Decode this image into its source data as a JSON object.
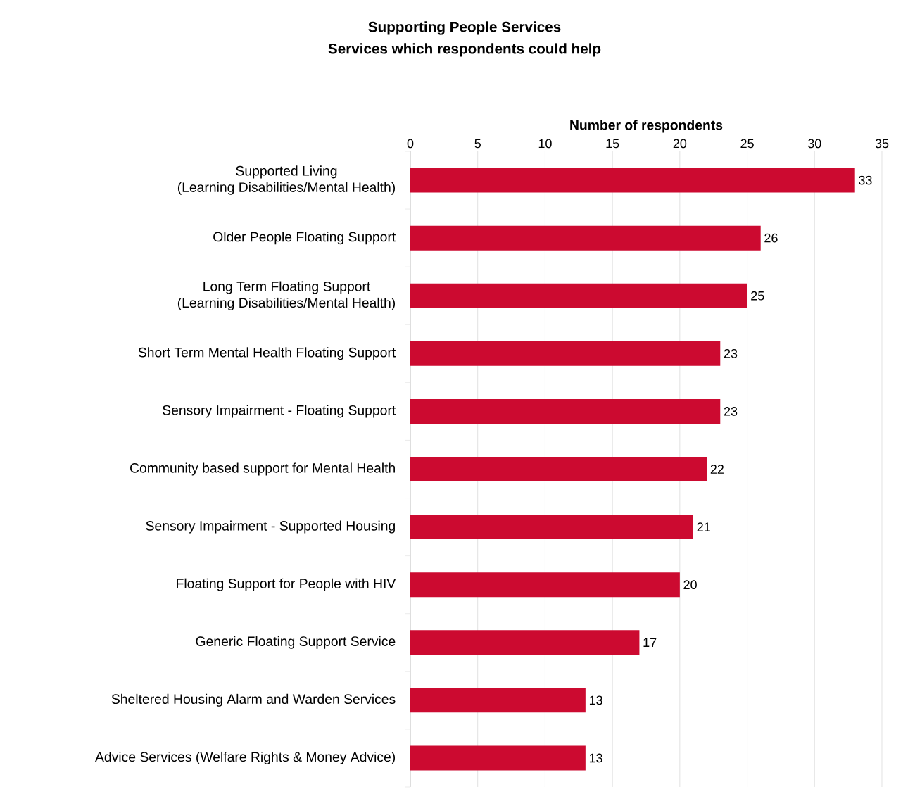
{
  "chart_data": {
    "type": "bar",
    "orientation": "horizontal",
    "title": "Supporting People Services",
    "subtitle": "Services which respondents could help",
    "xlabel": "Number of respondents",
    "categories": [
      "Supported Living\n(Learning Disabilities/Mental Health)",
      "Older People Floating Support",
      "Long Term Floating Support\n(Learning Disabilities/Mental Health)",
      "Short Term Mental Health Floating Support",
      "Sensory Impairment - Floating Support",
      "Community based support for Mental Health",
      "Sensory Impairment - Supported Housing",
      "Floating Support for People with HIV",
      "Generic Floating Support Service",
      "Sheltered Housing Alarm and Warden Services",
      "Advice Services (Welfare Rights & Money Advice)"
    ],
    "values": [
      33,
      26,
      25,
      23,
      23,
      22,
      21,
      20,
      17,
      13,
      13
    ],
    "color": "#cc0a30",
    "xlim": [
      0,
      35
    ],
    "xticks": [
      0,
      5,
      10,
      15,
      20,
      25,
      30,
      35
    ],
    "grid": "x",
    "data_labels": true
  }
}
